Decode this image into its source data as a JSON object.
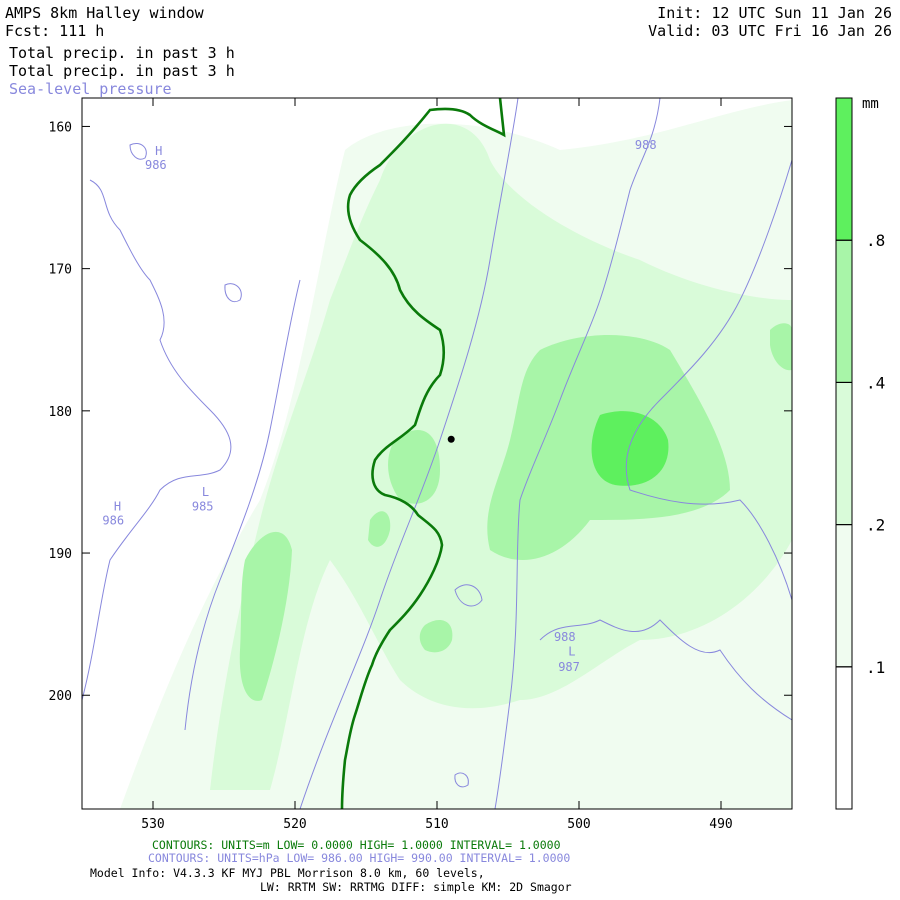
{
  "header": {
    "title": "AMPS 8km Halley window",
    "fcst": "Fcst: 111 h",
    "field1": "Total precip. in past 3 h",
    "field2": "Total precip. in past 3 h",
    "field3": "Sea-level pressure",
    "init": "Init: 12 UTC Sun 11 Jan 26",
    "valid": "Valid: 03 UTC Fri 16 Jan 26"
  },
  "chart_data": {
    "type": "heatmap",
    "x_ticks": [
      "530",
      "520",
      "510",
      "500",
      "490"
    ],
    "x_tick_values": [
      530,
      520,
      510,
      500,
      490
    ],
    "xlim": [
      535,
      485
    ],
    "y_ticks": [
      "160",
      "170",
      "180",
      "190",
      "200"
    ],
    "y_tick_values": [
      160,
      170,
      180,
      190,
      200
    ],
    "ylim": [
      158,
      208
    ],
    "colorbar": {
      "unit": "mm",
      "levels": [
        ".1",
        ".2",
        ".4",
        ".8"
      ],
      "colors": [
        "#ffffff",
        "#f0fcf0",
        "#d9fbd9",
        "#a8f5a8",
        "#5ef05e"
      ]
    },
    "pressure_labels": [
      {
        "text": "H",
        "x": 529.6,
        "y": 162.0
      },
      {
        "text": "986",
        "x": 529.8,
        "y": 163.0
      },
      {
        "text": "988",
        "x": 495.3,
        "y": 161.6
      },
      {
        "text": "H",
        "x": 532.5,
        "y": 187.0
      },
      {
        "text": "986",
        "x": 532.8,
        "y": 188.0
      },
      {
        "text": "L",
        "x": 526.3,
        "y": 186.0
      },
      {
        "text": "985",
        "x": 526.5,
        "y": 187.0
      },
      {
        "text": "988",
        "x": 501.0,
        "y": 196.2
      },
      {
        "text": "L",
        "x": 500.5,
        "y": 197.2
      },
      {
        "text": "987",
        "x": 500.7,
        "y": 198.3
      }
    ],
    "station": {
      "x": 509.0,
      "y": 182.0
    }
  },
  "footer": {
    "line1": "CONTOURS: UNITS=m LOW= 0.0000 HIGH= 1.0000 INTERVAL= 1.0000",
    "line2": "CONTOURS: UNITS=hPa LOW= 986.00 HIGH= 990.00 INTERVAL= 1.0000",
    "line3": "Model Info: V4.3.3 KF MYJ PBL Morrison 8.0 km, 60 levels,",
    "line4": "LW: RRTM SW: RRTMG DIFF: simple KM: 2D Smagor"
  },
  "colors": {
    "terrain_contour": "#0a7a0a",
    "pressure_contour": "#8888dd"
  }
}
